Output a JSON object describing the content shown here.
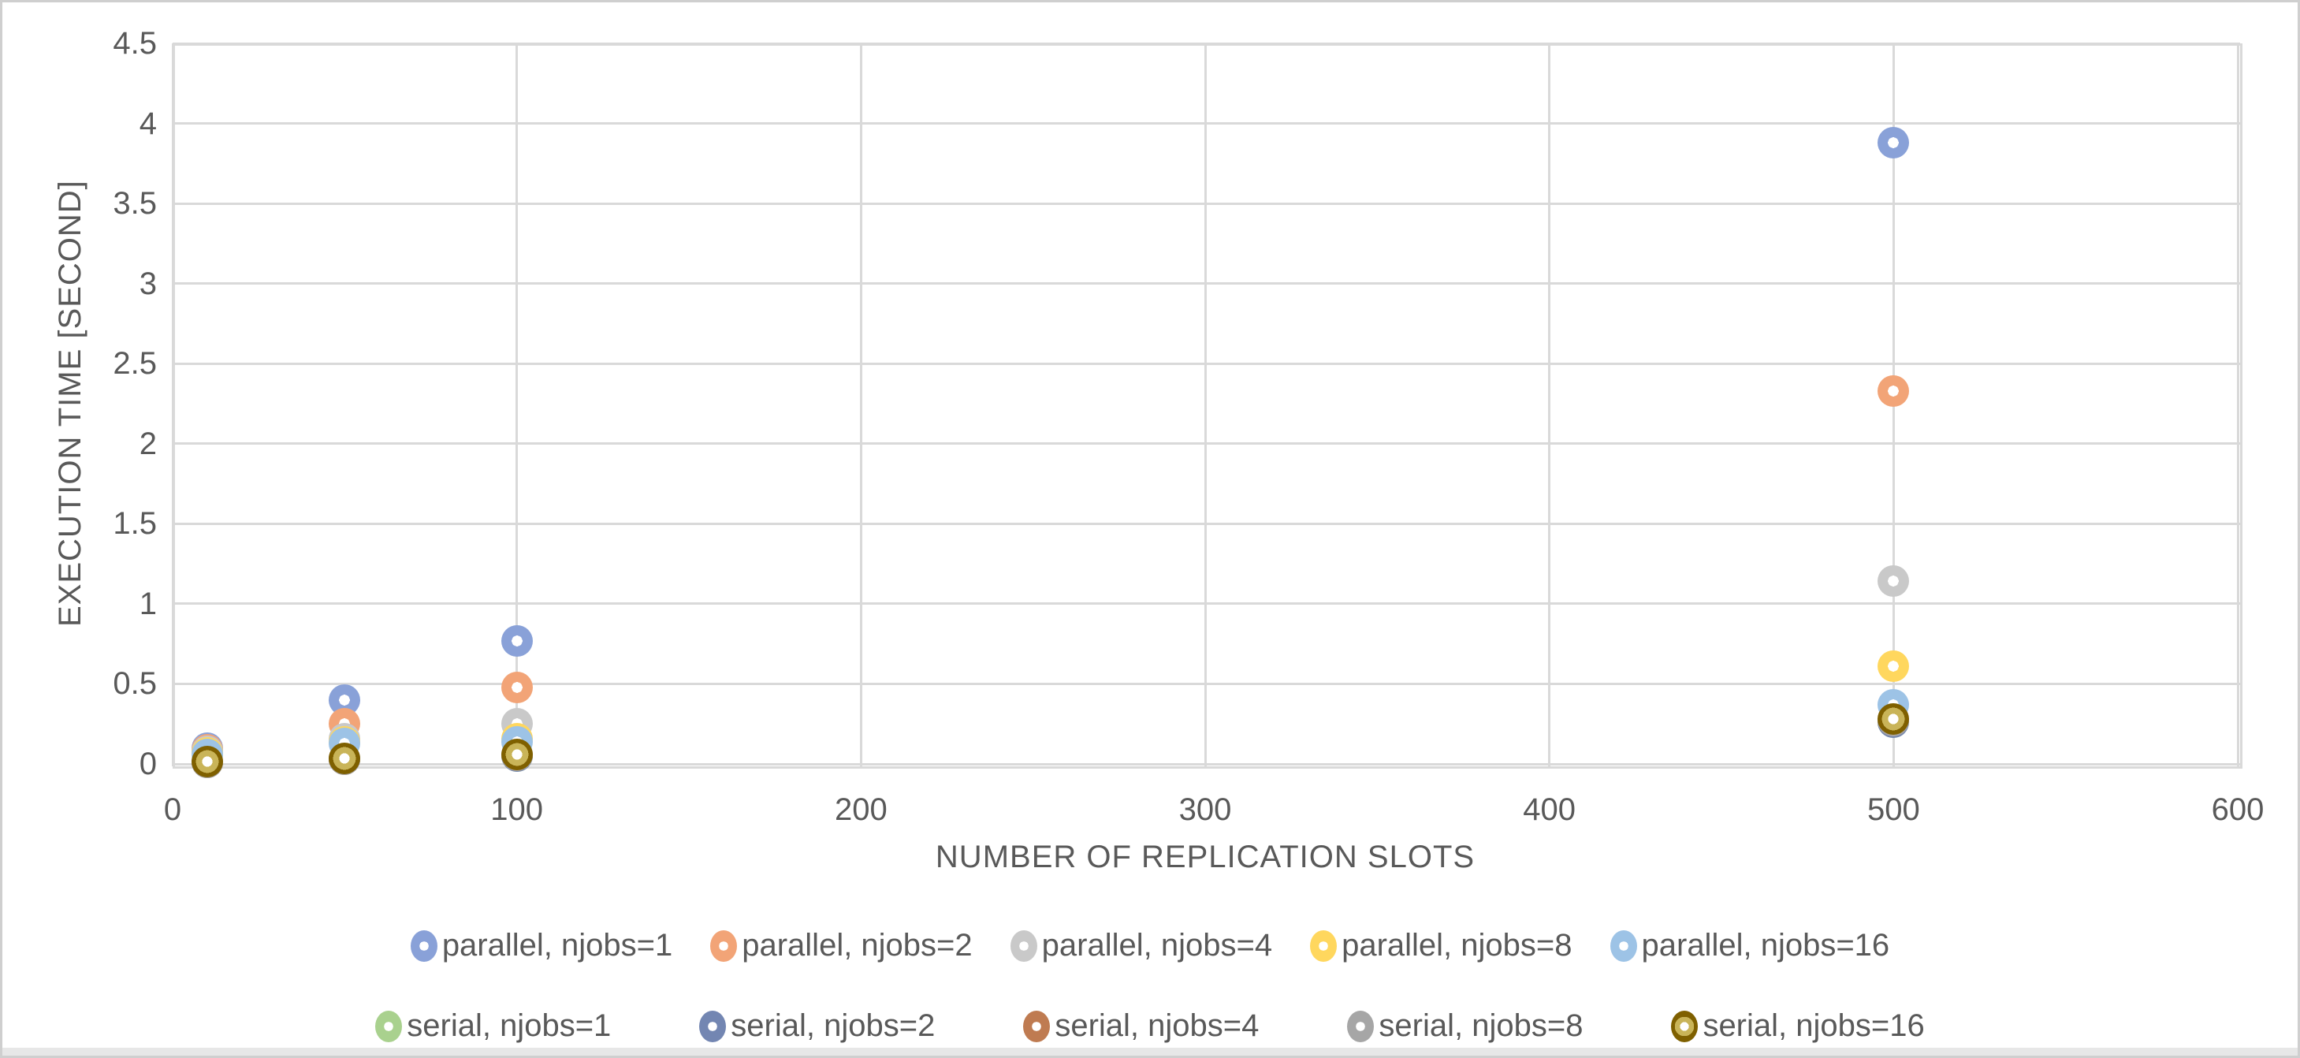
{
  "colors": {
    "text": "#595959",
    "gridline": "#D9D9D9",
    "plot_border": "#D9D9D9",
    "frame_border": "#CFCFCF",
    "background": "#FFFFFF"
  },
  "chart_data": {
    "type": "scatter",
    "title": "",
    "xlabel": "NUMBER OF REPLICATION SLOTS",
    "ylabel": "EXECUTION TIME [SECOND]",
    "xlim": [
      0,
      600
    ],
    "ylim": [
      0,
      4.5
    ],
    "x_ticks": [
      "0",
      "100",
      "200",
      "300",
      "400",
      "500",
      "600"
    ],
    "y_ticks": [
      "0",
      "0.5",
      "1",
      "1.5",
      "2",
      "2.5",
      "3",
      "3.5",
      "4",
      "4.5"
    ],
    "grid": true,
    "legend_position": "bottom",
    "marker": "circle-with-white-hole",
    "x": [
      10,
      50,
      100,
      500
    ],
    "series": [
      {
        "name": "parallel, njobs=1",
        "color": "#89A1D8",
        "values": [
          0.1,
          0.4,
          0.77,
          3.88
        ]
      },
      {
        "name": "parallel, njobs=2",
        "color": "#F2A477",
        "values": [
          0.09,
          0.25,
          0.48,
          2.33
        ]
      },
      {
        "name": "parallel, njobs=4",
        "color": "#C9C9C9",
        "values": [
          0.08,
          0.16,
          0.25,
          1.14
        ]
      },
      {
        "name": "parallel, njobs=8",
        "color": "#FFD75E",
        "values": [
          0.07,
          0.14,
          0.16,
          0.61
        ]
      },
      {
        "name": "parallel, njobs=16",
        "color": "#9DC3E6",
        "values": [
          0.06,
          0.13,
          0.14,
          0.37
        ]
      },
      {
        "name": "serial, njobs=1",
        "color": "#A9D18E",
        "values": [
          0.01,
          0.03,
          0.05,
          0.26
        ]
      },
      {
        "name": "serial, njobs=2",
        "color": "#7386B2",
        "values": [
          0.01,
          0.03,
          0.05,
          0.26
        ]
      },
      {
        "name": "serial, njobs=4",
        "color": "#BF7B51",
        "values": [
          0.01,
          0.03,
          0.052,
          0.27
        ]
      },
      {
        "name": "serial, njobs=8",
        "color": "#A6A6A6",
        "values": [
          0.012,
          0.032,
          0.055,
          0.27
        ]
      },
      {
        "name": "serial, njobs=16",
        "color": "#C9B458",
        "edge": "#7F6000",
        "values": [
          0.015,
          0.035,
          0.06,
          0.28
        ]
      }
    ]
  }
}
